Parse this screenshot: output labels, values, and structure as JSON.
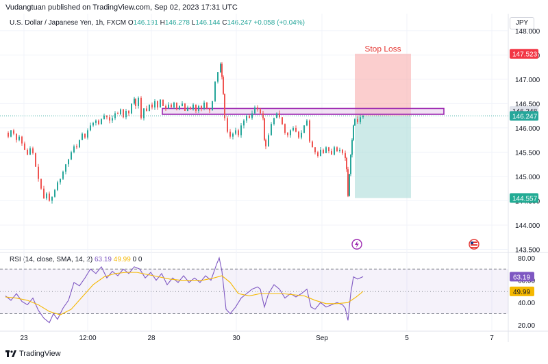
{
  "header": {
    "text": "Vudangtuan published on TradingView.com, Sep 02, 2023 17:31 UTC"
  },
  "legend": {
    "symbol": "U.S. Dollar / Japanese Yen, 1h, FXCM",
    "o_key": "O",
    "o": "146.191",
    "h_key": "H",
    "h": "146.278",
    "l_key": "L",
    "l": "146.144",
    "c_key": "C",
    "c": "146.247",
    "change": "+0.058 (+0.04%)"
  },
  "currency": "JPY",
  "rsi_legend": {
    "label": "RSI (14, close, SMA, 14, 2)",
    "rsi": "63.19",
    "sma": "49.99",
    "z1": "0",
    "z2": "0"
  },
  "footer": {
    "brand": "TradingView"
  },
  "colors": {
    "up": "#26a69a",
    "down": "#ef5350",
    "rsi": "#7e57c2",
    "sma": "#f5b800",
    "zone": "#9c27b0",
    "stop": "#f7a5a5",
    "target": "#b2dfdb"
  },
  "chart_data": [
    {
      "type": "candlestick",
      "title": "U.S. Dollar / Japanese Yen, 1h, FXCM",
      "x_ticks": [
        "23",
        "12:00",
        "28",
        "30",
        "Sep",
        "5",
        "7"
      ],
      "y_ticks": [
        "148.000",
        "147.500",
        "147.000",
        "146.500",
        "146.000",
        "145.500",
        "145.000",
        "144.500",
        "144.000",
        "143.500"
      ],
      "ylim": [
        143.45,
        148.35
      ],
      "ohlc_last": {
        "open": 146.191,
        "high": 146.278,
        "low": 146.144,
        "close": 146.247
      },
      "price_path": [
        [
          0,
          145.9
        ],
        [
          4,
          145.82
        ],
        [
          8,
          145.95
        ],
        [
          12,
          145.88
        ],
        [
          16,
          145.75
        ],
        [
          20,
          145.82
        ],
        [
          24,
          145.68
        ],
        [
          28,
          145.55
        ],
        [
          32,
          145.45
        ],
        [
          36,
          145.58
        ],
        [
          40,
          145.48
        ],
        [
          44,
          145.2
        ],
        [
          48,
          144.95
        ],
        [
          52,
          144.75
        ],
        [
          56,
          144.55
        ],
        [
          60,
          144.65
        ],
        [
          64,
          144.5
        ],
        [
          68,
          144.58
        ],
        [
          72,
          144.72
        ],
        [
          76,
          144.88
        ],
        [
          80,
          144.95
        ],
        [
          84,
          145.1
        ],
        [
          88,
          145.25
        ],
        [
          92,
          145.35
        ],
        [
          96,
          145.5
        ],
        [
          100,
          145.62
        ],
        [
          104,
          145.6
        ],
        [
          108,
          145.75
        ],
        [
          112,
          145.88
        ],
        [
          116,
          145.8
        ],
        [
          120,
          145.95
        ],
        [
          124,
          146.05
        ],
        [
          128,
          146.1
        ],
        [
          132,
          146.15
        ],
        [
          136,
          146.08
        ],
        [
          140,
          146.18
        ],
        [
          144,
          146.25
        ],
        [
          148,
          146.22
        ],
        [
          152,
          146.15
        ],
        [
          156,
          146.2
        ],
        [
          160,
          146.3
        ],
        [
          164,
          146.28
        ],
        [
          168,
          146.38
        ],
        [
          172,
          146.22
        ],
        [
          176,
          146.35
        ],
        [
          180,
          146.3
        ],
        [
          184,
          146.5
        ],
        [
          188,
          146.6
        ],
        [
          190,
          146.45
        ],
        [
          194,
          146.62
        ],
        [
          198,
          146.2
        ],
        [
          202,
          146.4
        ],
        [
          206,
          146.35
        ],
        [
          210,
          146.48
        ],
        [
          214,
          146.42
        ],
        [
          218,
          146.55
        ],
        [
          222,
          146.42
        ],
        [
          226,
          146.58
        ],
        [
          230,
          146.45
        ],
        [
          234,
          146.4
        ],
        [
          238,
          146.48
        ],
        [
          242,
          146.42
        ],
        [
          246,
          146.52
        ],
        [
          250,
          146.38
        ],
        [
          254,
          146.45
        ],
        [
          258,
          146.5
        ],
        [
          262,
          146.35
        ],
        [
          266,
          146.42
        ],
        [
          270,
          146.38
        ],
        [
          274,
          146.48
        ],
        [
          278,
          146.35
        ],
        [
          282,
          146.45
        ],
        [
          286,
          146.4
        ],
        [
          290,
          146.52
        ],
        [
          294,
          146.4
        ],
        [
          298,
          146.36
        ],
        [
          302,
          146.55
        ],
        [
          306,
          146.95
        ],
        [
          310,
          147.15
        ],
        [
          314,
          147.32
        ],
        [
          316,
          147.05
        ],
        [
          318,
          146.7
        ],
        [
          320,
          146.2
        ],
        [
          324,
          145.92
        ],
        [
          328,
          145.82
        ],
        [
          332,
          145.88
        ],
        [
          336,
          145.95
        ],
        [
          340,
          145.85
        ],
        [
          344,
          146.05
        ],
        [
          348,
          146.15
        ],
        [
          352,
          146.25
        ],
        [
          356,
          146.2
        ],
        [
          360,
          146.3
        ],
        [
          364,
          146.42
        ],
        [
          368,
          146.38
        ],
        [
          372,
          146.3
        ],
        [
          376,
          146.2
        ],
        [
          378,
          145.75
        ],
        [
          380,
          145.62
        ],
        [
          384,
          145.85
        ],
        [
          388,
          146.08
        ],
        [
          392,
          146.2
        ],
        [
          396,
          146.3
        ],
        [
          400,
          146.22
        ],
        [
          404,
          146.08
        ],
        [
          408,
          145.9
        ],
        [
          412,
          145.85
        ],
        [
          416,
          145.95
        ],
        [
          420,
          146.0
        ],
        [
          424,
          145.92
        ],
        [
          428,
          145.8
        ],
        [
          432,
          145.9
        ],
        [
          436,
          146.05
        ],
        [
          440,
          146.15
        ],
        [
          444,
          145.72
        ],
        [
          448,
          145.6
        ],
        [
          452,
          145.5
        ],
        [
          456,
          145.42
        ],
        [
          460,
          145.55
        ],
        [
          464,
          145.48
        ],
        [
          468,
          145.6
        ],
        [
          472,
          145.52
        ],
        [
          476,
          145.45
        ],
        [
          480,
          145.6
        ],
        [
          484,
          145.52
        ],
        [
          488,
          145.55
        ],
        [
          492,
          145.48
        ],
        [
          496,
          145.38
        ],
        [
          498,
          145.15
        ],
        [
          500,
          144.6
        ],
        [
          502,
          145.05
        ],
        [
          504,
          145.45
        ],
        [
          506,
          145.75
        ],
        [
          508,
          146.05
        ],
        [
          510,
          146.18
        ],
        [
          514,
          146.12
        ],
        [
          518,
          146.22
        ],
        [
          522,
          146.247
        ]
      ],
      "annotations": {
        "zone": {
          "from": 146.28,
          "to": 146.4
        },
        "stop_loss": {
          "label": "Stop Loss",
          "price": 147.523
        },
        "take_profit": {
          "price": 144.557
        },
        "price_tags": [
          {
            "text": "147.523",
            "kind": "stop"
          },
          {
            "text": "146.348",
            "kind": "zone"
          },
          {
            "text": "146.247",
            "kind": "last"
          },
          {
            "text": "144.557",
            "kind": "target"
          }
        ]
      }
    },
    {
      "type": "line",
      "title": "RSI (14, close, SMA, 14, 2)",
      "y_ticks": [
        "80.00",
        "60.00",
        "40.00",
        "20.00"
      ],
      "ylim": [
        15,
        83
      ],
      "bands": {
        "upper": 70,
        "middle": 50,
        "lower": 30
      },
      "series": [
        {
          "name": "RSI",
          "values": [
            [
              0,
              46
            ],
            [
              8,
              42
            ],
            [
              16,
              48
            ],
            [
              24,
              41
            ],
            [
              32,
              38
            ],
            [
              40,
              44
            ],
            [
              48,
              33
            ],
            [
              56,
              26
            ],
            [
              64,
              22
            ],
            [
              70,
              30
            ],
            [
              76,
              25
            ],
            [
              84,
              35
            ],
            [
              92,
              42
            ],
            [
              100,
              58
            ],
            [
              108,
              55
            ],
            [
              116,
              62
            ],
            [
              124,
              70
            ],
            [
              132,
              66
            ],
            [
              140,
              72
            ],
            [
              148,
              62
            ],
            [
              156,
              68
            ],
            [
              164,
              64
            ],
            [
              172,
              70
            ],
            [
              180,
              66
            ],
            [
              188,
              72
            ],
            [
              196,
              70
            ],
            [
              204,
              62
            ],
            [
              212,
              67
            ],
            [
              220,
              60
            ],
            [
              228,
              66
            ],
            [
              236,
              56
            ],
            [
              244,
              62
            ],
            [
              252,
              58
            ],
            [
              260,
              64
            ],
            [
              268,
              58
            ],
            [
              276,
              62
            ],
            [
              284,
              58
            ],
            [
              292,
              64
            ],
            [
              300,
              60
            ],
            [
              308,
              74
            ],
            [
              312,
              80
            ],
            [
              316,
              68
            ],
            [
              322,
              34
            ],
            [
              328,
              30
            ],
            [
              336,
              36
            ],
            [
              344,
              44
            ],
            [
              352,
              48
            ],
            [
              360,
              52
            ],
            [
              368,
              54
            ],
            [
              372,
              52
            ],
            [
              378,
              36
            ],
            [
              384,
              48
            ],
            [
              392,
              56
            ],
            [
              400,
              52
            ],
            [
              408,
              44
            ],
            [
              416,
              48
            ],
            [
              424,
              45
            ],
            [
              432,
              48
            ],
            [
              440,
              52
            ],
            [
              446,
              36
            ],
            [
              452,
              34
            ],
            [
              460,
              40
            ],
            [
              468,
              36
            ],
            [
              476,
              38
            ],
            [
              484,
              40
            ],
            [
              492,
              38
            ],
            [
              496,
              35
            ],
            [
              500,
              24
            ],
            [
              504,
              48
            ],
            [
              508,
              63
            ],
            [
              514,
              61
            ],
            [
              522,
              63.19
            ]
          ]
        },
        {
          "name": "SMA",
          "values": [
            [
              0,
              45
            ],
            [
              16,
              44
            ],
            [
              32,
              42
            ],
            [
              48,
              38
            ],
            [
              64,
              32
            ],
            [
              80,
              29
            ],
            [
              96,
              34
            ],
            [
              112,
              45
            ],
            [
              128,
              56
            ],
            [
              144,
              63
            ],
            [
              160,
              66
            ],
            [
              176,
              67
            ],
            [
              192,
              67
            ],
            [
              208,
              65
            ],
            [
              224,
              63
            ],
            [
              240,
              61
            ],
            [
              256,
              60
            ],
            [
              272,
              60
            ],
            [
              288,
              60
            ],
            [
              304,
              62
            ],
            [
              316,
              64
            ],
            [
              328,
              58
            ],
            [
              340,
              48
            ],
            [
              356,
              46
            ],
            [
              372,
              48
            ],
            [
              388,
              48
            ],
            [
              404,
              48
            ],
            [
              420,
              47
            ],
            [
              436,
              46
            ],
            [
              452,
              42
            ],
            [
              468,
              39
            ],
            [
              484,
              39
            ],
            [
              500,
              40
            ],
            [
              512,
              45
            ],
            [
              522,
              49.99
            ]
          ]
        }
      ]
    }
  ]
}
